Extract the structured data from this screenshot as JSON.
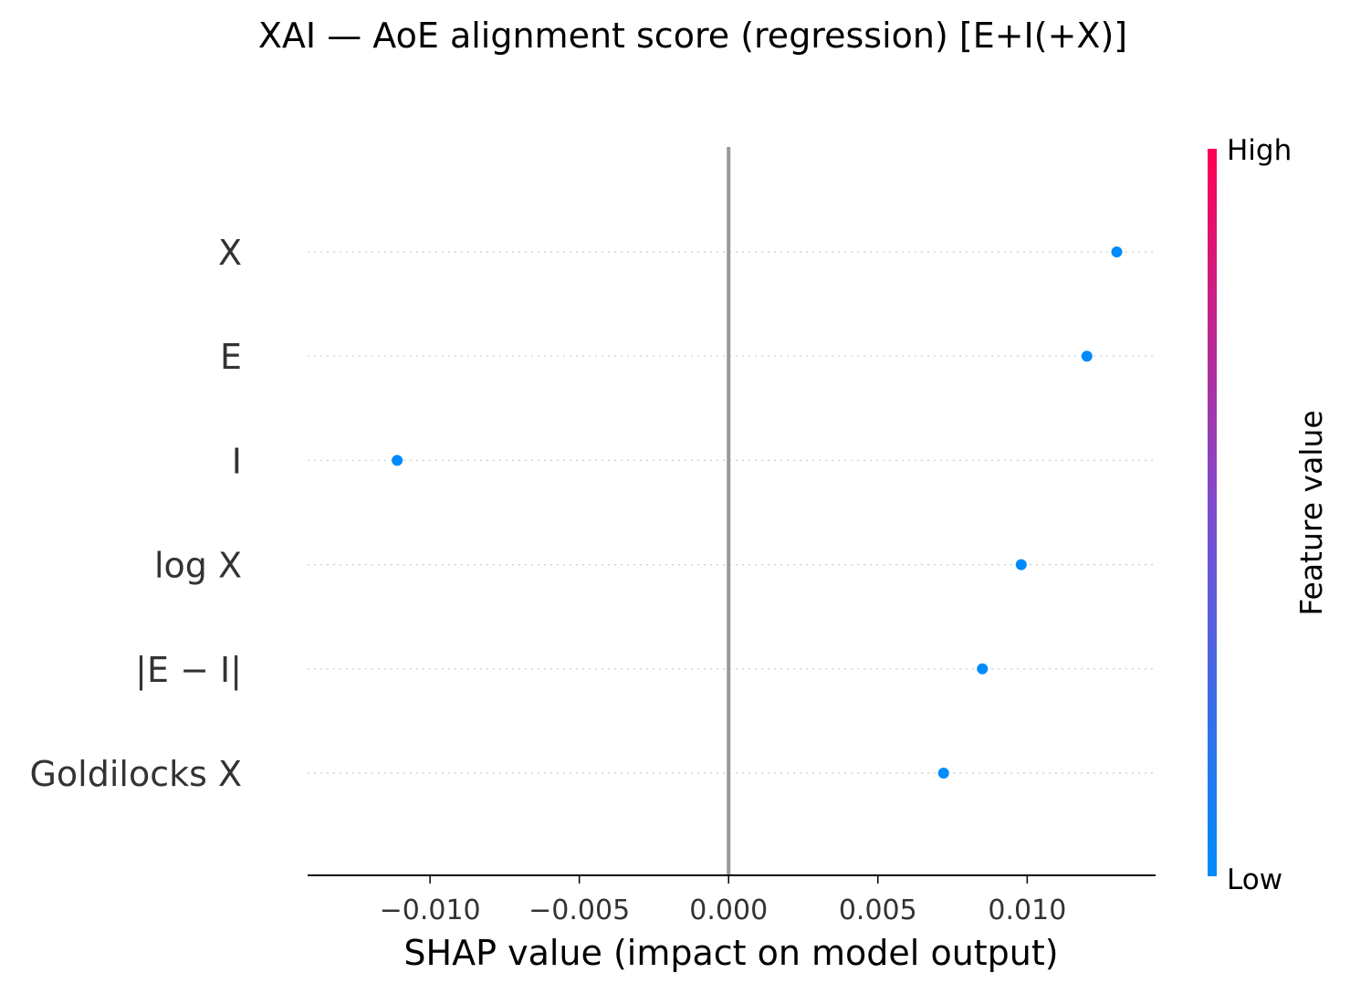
{
  "chart_data": {
    "type": "scatter",
    "title": "XAI — AoE alignment score (regression) [E+I(+X)]",
    "xlabel": "SHAP value (impact on model output)",
    "ylabel": "",
    "xlim": [
      -0.0141,
      0.0143
    ],
    "x_ticks": [
      -0.01,
      -0.005,
      0.0,
      0.005,
      0.01
    ],
    "x_tick_labels": [
      "−0.010",
      "−0.005",
      "0.000",
      "0.005",
      "0.010"
    ],
    "features": [
      "X",
      "E",
      "I",
      "log X",
      "|E − I|",
      "Goldilocks X"
    ],
    "points": [
      {
        "feature": "X",
        "shap": 0.013,
        "feature_value": "low"
      },
      {
        "feature": "E",
        "shap": 0.012,
        "feature_value": "low"
      },
      {
        "feature": "I",
        "shap": -0.0111,
        "feature_value": "low"
      },
      {
        "feature": "log X",
        "shap": 0.0098,
        "feature_value": "low"
      },
      {
        "feature": "|E − I|",
        "shap": 0.0085,
        "feature_value": "low"
      },
      {
        "feature": "Goldilocks X",
        "shap": 0.0072,
        "feature_value": "low"
      }
    ],
    "zero_line": 0.0,
    "grid": "dotted horizontal per feature",
    "colorbar": {
      "label": "Feature value",
      "high_label": "High",
      "low_label": "Low",
      "low_color": "#008bfb",
      "mid_color": "#7c4dcf",
      "high_color": "#ff0052"
    },
    "point_color": "#008bfb",
    "zero_line_color": "#999999"
  }
}
